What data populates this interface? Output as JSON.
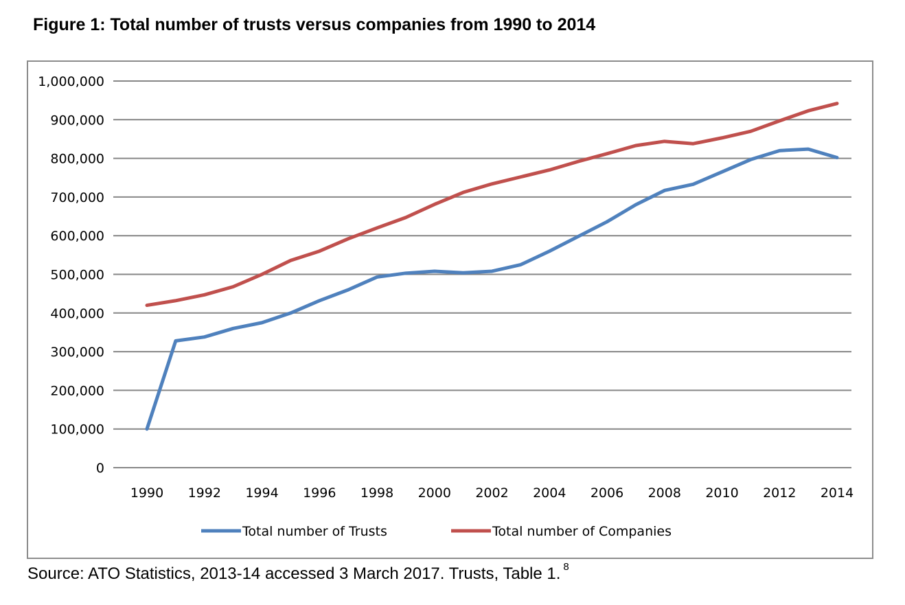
{
  "chart_data": {
    "type": "line",
    "title": "Figure 1: Total number of trusts versus companies from 1990 to 2014",
    "xlabel": "",
    "ylabel": "",
    "x": [
      1990,
      1991,
      1992,
      1993,
      1994,
      1995,
      1996,
      1997,
      1998,
      1999,
      2000,
      2001,
      2002,
      2003,
      2004,
      2005,
      2006,
      2007,
      2008,
      2009,
      2010,
      2011,
      2012,
      2013,
      2014
    ],
    "x_tick_labels": [
      "1990",
      "1992",
      "1994",
      "1996",
      "1998",
      "2000",
      "2002",
      "2004",
      "2006",
      "2008",
      "2010",
      "2012",
      "2014"
    ],
    "y_tick_labels": [
      "0",
      "100,000",
      "200,000",
      "300,000",
      "400,000",
      "500,000",
      "600,000",
      "700,000",
      "800,000",
      "900,000",
      "1,000,000"
    ],
    "ylim": [
      0,
      1000000
    ],
    "grid": "horizontal",
    "legend": "bottom",
    "series": [
      {
        "name": "Total number of Trusts",
        "color": "#4f81bd",
        "values": [
          100000,
          328000,
          338000,
          360000,
          375000,
          400000,
          432000,
          460000,
          493000,
          503000,
          508000,
          504000,
          508000,
          525000,
          560000,
          598000,
          636000,
          680000,
          717000,
          733000,
          765000,
          797000,
          820000,
          824000,
          802000
        ]
      },
      {
        "name": "Total number of Companies",
        "color": "#c0504d",
        "values": [
          420000,
          432000,
          447000,
          468000,
          500000,
          536000,
          560000,
          592000,
          620000,
          647000,
          681000,
          712000,
          734000,
          752000,
          770000,
          792000,
          812000,
          833000,
          844000,
          838000,
          853000,
          870000,
          897000,
          923000,
          942000
        ]
      }
    ]
  },
  "source": {
    "text": "Source: ATO Statistics, 2013-14 accessed 3 March 2017. Trusts, Table 1.",
    "footnote": "8"
  }
}
